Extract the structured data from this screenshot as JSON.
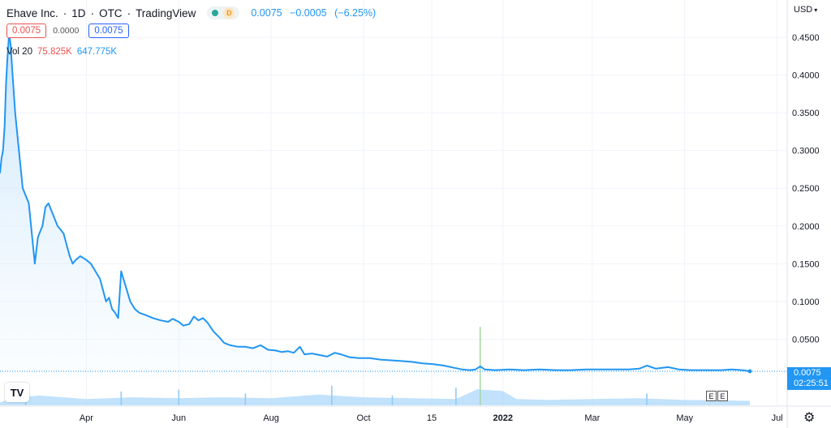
{
  "header": {
    "symbol": "Ehave Inc.",
    "interval": "1D",
    "exchange": "OTC",
    "source": "TradingView",
    "badge": "D",
    "last_price": "0.0075",
    "change": "−0.0005",
    "change_pct": "(−6.25%)"
  },
  "quote": {
    "bid": "0.0075",
    "spread": "0.0000",
    "ask": "0.0075"
  },
  "volume_indicator": {
    "label": "Vol 20",
    "value1": "75.825K",
    "value2": "647.775K"
  },
  "currency": "USD",
  "price_label": {
    "price": "0.0075",
    "countdown": "02:25:51"
  },
  "earnings_markers": [
    "E",
    "E"
  ],
  "logo": "TV",
  "icons": {
    "settings": "gear-icon",
    "logo": "tradingview-logo-icon",
    "status": "market-status-icon"
  },
  "colors": {
    "line": "#2196f3",
    "fill": "#e3f2fd",
    "volume": "#90caf9",
    "grid": "#f0f3fa",
    "axis_text": "#131722"
  },
  "chart_data": {
    "type": "area",
    "title": "Ehave Inc. · 1D · OTC",
    "xlabel": "",
    "ylabel": "USD",
    "ylim": [
      0,
      0.48
    ],
    "grid": true,
    "ytick_labels": [
      "0.0500",
      "0.1000",
      "0.1500",
      "0.2000",
      "0.2500",
      "0.3000",
      "0.3500",
      "0.4000",
      "0.4500"
    ],
    "yticks": [
      0.05,
      0.1,
      0.15,
      0.2,
      0.25,
      0.3,
      0.35,
      0.4,
      0.45
    ],
    "xtick_labels": [
      {
        "label": "Apr",
        "date": "2021-04-01"
      },
      {
        "label": "Jun",
        "date": "2021-06-01"
      },
      {
        "label": "Aug",
        "date": "2021-08-01"
      },
      {
        "label": "Oct",
        "date": "2021-10-01"
      },
      {
        "label": "15",
        "date": "2021-11-15"
      },
      {
        "label": "2022",
        "date": "2022-01-01",
        "bold": true
      },
      {
        "label": "Mar",
        "date": "2022-03-01"
      },
      {
        "label": "May",
        "date": "2022-05-01"
      },
      {
        "label": "Jul",
        "date": "2022-07-01"
      }
    ],
    "series": [
      {
        "points": [
          [
            "2021-02-03",
            0.27
          ],
          [
            "2021-02-04",
            0.29
          ],
          [
            "2021-02-05",
            0.3
          ],
          [
            "2021-02-06",
            0.33
          ],
          [
            "2021-02-07",
            0.39
          ],
          [
            "2021-02-08",
            0.425
          ],
          [
            "2021-02-09",
            0.455
          ],
          [
            "2021-02-10",
            0.44
          ],
          [
            "2021-02-11",
            0.41
          ],
          [
            "2021-02-12",
            0.38
          ],
          [
            "2021-02-13",
            0.35
          ],
          [
            "2021-02-15",
            0.31
          ],
          [
            "2021-02-17",
            0.27
          ],
          [
            "2021-02-18",
            0.25
          ],
          [
            "2021-02-19",
            0.245
          ],
          [
            "2021-02-22",
            0.23
          ],
          [
            "2021-02-24",
            0.19
          ],
          [
            "2021-02-26",
            0.15
          ],
          [
            "2021-02-28",
            0.185
          ],
          [
            "2021-03-01",
            0.19
          ],
          [
            "2021-03-03",
            0.2
          ],
          [
            "2021-03-05",
            0.225
          ],
          [
            "2021-03-07",
            0.23
          ],
          [
            "2021-03-09",
            0.22
          ],
          [
            "2021-03-11",
            0.21
          ],
          [
            "2021-03-13",
            0.2
          ],
          [
            "2021-03-15",
            0.195
          ],
          [
            "2021-03-17",
            0.19
          ],
          [
            "2021-03-19",
            0.175
          ],
          [
            "2021-03-21",
            0.16
          ],
          [
            "2021-03-23",
            0.15
          ],
          [
            "2021-03-25",
            0.155
          ],
          [
            "2021-03-28",
            0.16
          ],
          [
            "2021-04-01",
            0.155
          ],
          [
            "2021-04-04",
            0.15
          ],
          [
            "2021-04-07",
            0.14
          ],
          [
            "2021-04-10",
            0.13
          ],
          [
            "2021-04-12",
            0.115
          ],
          [
            "2021-04-14",
            0.1
          ],
          [
            "2021-04-16",
            0.105
          ],
          [
            "2021-04-18",
            0.09
          ],
          [
            "2021-04-20",
            0.085
          ],
          [
            "2021-04-22",
            0.078
          ],
          [
            "2021-04-24",
            0.14
          ],
          [
            "2021-04-27",
            0.12
          ],
          [
            "2021-04-30",
            0.1
          ],
          [
            "2021-05-03",
            0.09
          ],
          [
            "2021-05-06",
            0.085
          ],
          [
            "2021-05-10",
            0.082
          ],
          [
            "2021-05-15",
            0.078
          ],
          [
            "2021-05-20",
            0.075
          ],
          [
            "2021-05-25",
            0.073
          ],
          [
            "2021-05-28",
            0.077
          ],
          [
            "2021-06-01",
            0.073
          ],
          [
            "2021-06-04",
            0.068
          ],
          [
            "2021-06-08",
            0.07
          ],
          [
            "2021-06-11",
            0.08
          ],
          [
            "2021-06-14",
            0.075
          ],
          [
            "2021-06-17",
            0.078
          ],
          [
            "2021-06-20",
            0.072
          ],
          [
            "2021-06-24",
            0.06
          ],
          [
            "2021-06-28",
            0.052
          ],
          [
            "2021-07-01",
            0.045
          ],
          [
            "2021-07-05",
            0.042
          ],
          [
            "2021-07-10",
            0.04
          ],
          [
            "2021-07-15",
            0.04
          ],
          [
            "2021-07-20",
            0.038
          ],
          [
            "2021-07-25",
            0.042
          ],
          [
            "2021-07-30",
            0.036
          ],
          [
            "2021-08-04",
            0.035
          ],
          [
            "2021-08-08",
            0.033
          ],
          [
            "2021-08-12",
            0.034
          ],
          [
            "2021-08-16",
            0.032
          ],
          [
            "2021-08-20",
            0.04
          ],
          [
            "2021-08-23",
            0.03
          ],
          [
            "2021-08-28",
            0.031
          ],
          [
            "2021-09-02",
            0.029
          ],
          [
            "2021-09-07",
            0.027
          ],
          [
            "2021-09-12",
            0.032
          ],
          [
            "2021-09-16",
            0.03
          ],
          [
            "2021-09-22",
            0.026
          ],
          [
            "2021-09-28",
            0.025
          ],
          [
            "2021-10-05",
            0.025
          ],
          [
            "2021-10-12",
            0.023
          ],
          [
            "2021-10-19",
            0.022
          ],
          [
            "2021-10-26",
            0.021
          ],
          [
            "2021-11-02",
            0.02
          ],
          [
            "2021-11-09",
            0.018
          ],
          [
            "2021-11-16",
            0.017
          ],
          [
            "2021-11-23",
            0.015
          ],
          [
            "2021-11-30",
            0.012
          ],
          [
            "2021-12-05",
            0.01
          ],
          [
            "2021-12-10",
            0.009
          ],
          [
            "2021-12-14",
            0.01
          ],
          [
            "2021-12-17",
            0.014
          ],
          [
            "2021-12-20",
            0.01
          ],
          [
            "2021-12-27",
            0.009
          ],
          [
            "2022-01-05",
            0.01
          ],
          [
            "2022-01-15",
            0.009
          ],
          [
            "2022-01-25",
            0.01
          ],
          [
            "2022-02-05",
            0.009
          ],
          [
            "2022-02-15",
            0.009
          ],
          [
            "2022-02-25",
            0.01
          ],
          [
            "2022-03-05",
            0.01
          ],
          [
            "2022-03-15",
            0.01
          ],
          [
            "2022-03-25",
            0.01
          ],
          [
            "2022-04-01",
            0.011
          ],
          [
            "2022-04-06",
            0.015
          ],
          [
            "2022-04-12",
            0.011
          ],
          [
            "2022-04-20",
            0.013
          ],
          [
            "2022-04-27",
            0.01
          ],
          [
            "2022-05-05",
            0.009
          ],
          [
            "2022-05-15",
            0.009
          ],
          [
            "2022-05-25",
            0.009
          ],
          [
            "2022-06-01",
            0.01
          ],
          [
            "2022-06-08",
            0.009
          ],
          [
            "2022-06-13",
            0.0075
          ]
        ]
      }
    ],
    "volume": {
      "profile": [
        [
          "2021-02-03",
          0.15
        ],
        [
          "2021-02-10",
          0.4
        ],
        [
          "2021-03-01",
          0.55
        ],
        [
          "2021-04-01",
          0.35
        ],
        [
          "2021-05-01",
          0.45
        ],
        [
          "2021-06-01",
          0.4
        ],
        [
          "2021-07-01",
          0.45
        ],
        [
          "2021-08-01",
          0.4
        ],
        [
          "2021-09-01",
          0.6
        ],
        [
          "2021-10-01",
          0.45
        ],
        [
          "2021-11-01",
          0.4
        ],
        [
          "2021-12-01",
          0.35
        ],
        [
          "2021-12-15",
          0.9
        ],
        [
          "2022-01-01",
          0.8
        ],
        [
          "2022-01-10",
          0.35
        ],
        [
          "2022-02-01",
          0.3
        ],
        [
          "2022-03-01",
          0.35
        ],
        [
          "2022-04-01",
          0.4
        ],
        [
          "2022-05-01",
          0.3
        ],
        [
          "2022-06-13",
          0.25
        ]
      ],
      "spikes": [
        [
          "2021-02-20",
          0.6
        ],
        [
          "2021-04-24",
          0.7
        ],
        [
          "2021-06-01",
          0.8
        ],
        [
          "2021-07-15",
          0.6
        ],
        [
          "2021-09-10",
          1.0
        ],
        [
          "2021-10-20",
          0.5
        ],
        [
          "2021-12-01",
          0.9
        ],
        [
          "2021-12-17",
          4.0
        ],
        [
          "2022-04-06",
          0.6
        ]
      ]
    },
    "last_value": 0.0075
  }
}
